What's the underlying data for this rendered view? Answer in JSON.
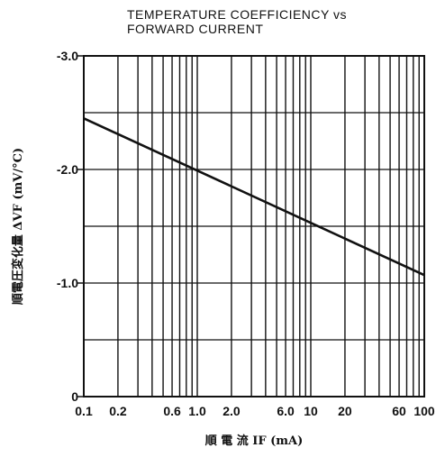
{
  "chart_data": {
    "type": "line",
    "title_lines": [
      "TEMPERATURE COEFFICIENCY vs",
      "FORWARD CURRENT"
    ],
    "xlabel": "順 電 流 IF (mA)",
    "ylabel": "順電圧変化量 ΔVF (mV/°C)",
    "x_scale": "log",
    "xlim": [
      0.1,
      100
    ],
    "ylim": [
      0,
      -3.0
    ],
    "x_ticks": [
      0.1,
      0.2,
      0.6,
      1.0,
      2.0,
      6.0,
      10,
      20,
      60,
      100
    ],
    "x_tick_labels": [
      "0.1",
      "0.2",
      "0.6",
      "1.0",
      "2.0",
      "6.0",
      "10",
      "20",
      "60",
      "100"
    ],
    "y_ticks": [
      -3.0,
      -2.0,
      -1.0,
      0
    ],
    "y_tick_labels": [
      "-3.0",
      "-2.0",
      "-1.0",
      "0"
    ],
    "grid": true,
    "series": [
      {
        "x": [
          0.1,
          100
        ],
        "y": [
          -2.45,
          -1.07
        ]
      }
    ]
  }
}
